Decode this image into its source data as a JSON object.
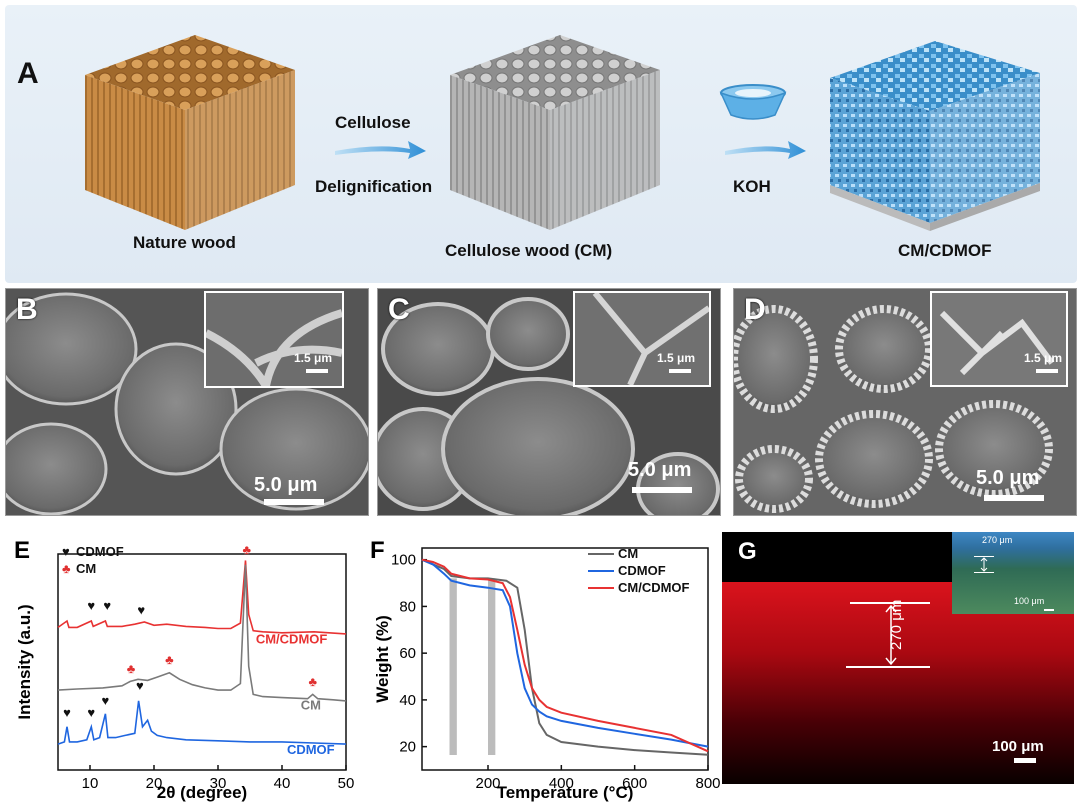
{
  "panel_a": {
    "letter": "A",
    "stage1": "Nature wood",
    "step1_top": "Cellulose",
    "step1_bottom": "Delignification",
    "stage2": "Cellulose wood (CM)",
    "step2": "KOH",
    "stage3": "CM/CDMOF"
  },
  "sem_b": {
    "letter": "B",
    "scale": "5.0 μm",
    "inset_scale": "1.5 μm"
  },
  "sem_c": {
    "letter": "C",
    "scale": "5.0 μm",
    "inset_scale": "1.5 μm"
  },
  "sem_d": {
    "letter": "D",
    "scale": "5.0 μm",
    "inset_scale": "1.5 μm"
  },
  "panel_g": {
    "letter": "G",
    "scale": "100 μm",
    "thickness": "270 μm",
    "inset_top": "270 μm",
    "inset_scale": "100 μm"
  },
  "colors": {
    "cm": "#7a7a7a",
    "cdmof": "#1f66e0",
    "cm_cdmof": "#e83232",
    "red_marker": "#e03030"
  },
  "chart_data": [
    {
      "type": "line",
      "panel": "E",
      "xlabel": "2θ (degree)",
      "ylabel": "Intensity (a.u.)",
      "xlim": [
        5,
        50
      ],
      "xticks": [
        10,
        20,
        30,
        40,
        50
      ],
      "legend": [
        {
          "symbol": "♥",
          "name": "CDMOF"
        },
        {
          "symbol": "♣",
          "name": "CM"
        }
      ],
      "legend_position": "top-left",
      "series": [
        {
          "name": "CM/CDMOF",
          "color": "#e83232",
          "x": [
            5,
            6.4,
            6.7,
            8,
            10.2,
            10.5,
            12.4,
            12.7,
            15,
            17,
            18.5,
            20,
            22,
            25,
            28,
            30,
            32,
            33.5,
            34.3,
            34.8,
            35.5,
            37,
            40,
            45,
            50
          ],
          "y": [
            0.66,
            0.69,
            0.66,
            0.66,
            0.69,
            0.665,
            0.69,
            0.665,
            0.665,
            0.675,
            0.685,
            0.67,
            0.675,
            0.665,
            0.66,
            0.655,
            0.655,
            0.68,
            0.97,
            0.72,
            0.645,
            0.64,
            0.635,
            0.64,
            0.63
          ]
        },
        {
          "name": "CM",
          "color": "#7a7a7a",
          "x": [
            5,
            8,
            12,
            15,
            16.3,
            17.5,
            19,
            20.5,
            22.4,
            24,
            26,
            28,
            30,
            32,
            33.5,
            34.3,
            34.8,
            35.5,
            37,
            40,
            44,
            44.8,
            45.6,
            48,
            50
          ],
          "y": [
            0.37,
            0.375,
            0.38,
            0.39,
            0.41,
            0.42,
            0.415,
            0.43,
            0.45,
            0.42,
            0.395,
            0.38,
            0.37,
            0.37,
            0.4,
            0.95,
            0.48,
            0.35,
            0.34,
            0.335,
            0.33,
            0.35,
            0.33,
            0.325,
            0.32
          ]
        },
        {
          "name": "CDMOF",
          "color": "#1f66e0",
          "x": [
            5,
            6,
            6.4,
            6.8,
            8,
            9.5,
            10.2,
            10.6,
            11.5,
            12.4,
            12.8,
            14,
            15.5,
            17,
            17.6,
            18.2,
            19,
            19.6,
            20.5,
            22,
            25,
            30,
            35,
            40,
            45,
            50
          ],
          "y": [
            0.12,
            0.13,
            0.2,
            0.13,
            0.13,
            0.14,
            0.2,
            0.14,
            0.15,
            0.26,
            0.15,
            0.15,
            0.16,
            0.17,
            0.32,
            0.2,
            0.23,
            0.18,
            0.16,
            0.15,
            0.14,
            0.135,
            0.13,
            0.13,
            0.125,
            0.12
          ]
        }
      ],
      "markers": [
        {
          "symbol": "♥",
          "x": 6.4,
          "y": 0.245,
          "color": "#111"
        },
        {
          "symbol": "♥",
          "x": 10.2,
          "y": 0.245,
          "color": "#111"
        },
        {
          "symbol": "♥",
          "x": 12.4,
          "y": 0.3,
          "color": "#111"
        },
        {
          "symbol": "♥",
          "x": 17.8,
          "y": 0.37,
          "color": "#111"
        },
        {
          "symbol": "♥",
          "x": 10.2,
          "y": 0.74,
          "color": "#111"
        },
        {
          "symbol": "♥",
          "x": 12.7,
          "y": 0.74,
          "color": "#111"
        },
        {
          "symbol": "♥",
          "x": 18.0,
          "y": 0.72,
          "color": "#111"
        },
        {
          "symbol": "♣",
          "x": 16.4,
          "y": 0.45,
          "color": "#e03030"
        },
        {
          "symbol": "♣",
          "x": 22.4,
          "y": 0.49,
          "color": "#e03030"
        },
        {
          "symbol": "♣",
          "x": 34.5,
          "y": 1.0,
          "color": "#e03030"
        },
        {
          "symbol": "♣",
          "x": 44.8,
          "y": 0.39,
          "color": "#e03030"
        }
      ],
      "curve_labels": [
        {
          "text": "CM/CDMOF",
          "x": 41.5,
          "y": 0.585,
          "color": "#e83232"
        },
        {
          "text": "CM",
          "x": 44.5,
          "y": 0.28,
          "color": "#7a7a7a"
        },
        {
          "text": "CDMOF",
          "x": 44.5,
          "y": 0.075,
          "color": "#1f66e0"
        }
      ]
    },
    {
      "type": "line",
      "panel": "F",
      "xlabel": "Temperature (°C)",
      "ylabel": "Weight (%)",
      "xlim": [
        20,
        800
      ],
      "ylim": [
        10,
        105
      ],
      "xticks": [
        200,
        400,
        600,
        800
      ],
      "yticks": [
        20,
        40,
        60,
        80,
        100
      ],
      "legend_position": "top-right",
      "shaded_bands": [
        [
          95,
          115
        ],
        [
          200,
          220
        ]
      ],
      "series": [
        {
          "name": "CM",
          "color": "#666666",
          "x": [
            20,
            50,
            80,
            100,
            150,
            200,
            250,
            280,
            300,
            320,
            340,
            360,
            400,
            500,
            600,
            700,
            800
          ],
          "y": [
            100,
            98,
            96,
            93,
            92,
            92,
            91,
            88,
            70,
            45,
            30,
            25,
            22,
            20,
            18.5,
            17.5,
            16.5
          ]
        },
        {
          "name": "CDMOF",
          "color": "#1f66e0",
          "x": [
            20,
            50,
            80,
            100,
            150,
            200,
            240,
            260,
            280,
            300,
            320,
            340,
            360,
            400,
            500,
            600,
            700,
            800
          ],
          "y": [
            100,
            98,
            94,
            91,
            89,
            88,
            87,
            80,
            60,
            45,
            38,
            35,
            33,
            31,
            28,
            25.5,
            23,
            20
          ]
        },
        {
          "name": "CM/CDMOF",
          "color": "#e83232",
          "x": [
            20,
            50,
            80,
            100,
            150,
            200,
            240,
            260,
            280,
            300,
            320,
            340,
            360,
            400,
            500,
            600,
            700,
            800
          ],
          "y": [
            100,
            99,
            97,
            94,
            92,
            91.5,
            90,
            84,
            70,
            55,
            45,
            40,
            37,
            34.5,
            31,
            28,
            25,
            18
          ]
        }
      ]
    }
  ]
}
